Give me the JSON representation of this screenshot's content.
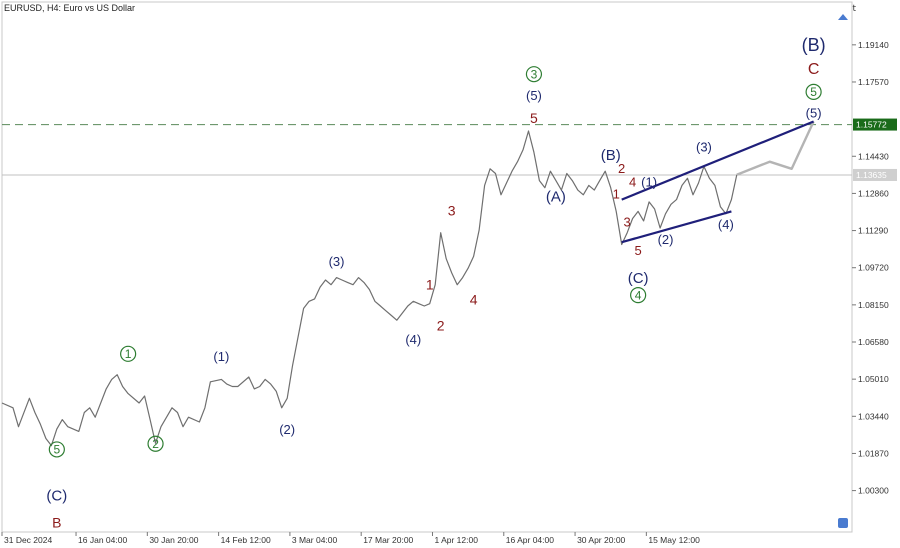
{
  "header": {
    "symbol_title": "EURUSD, H4:  Euro vs US Dollar",
    "corner_glyph": "t"
  },
  "colors": {
    "price_line": "#6f6f6f",
    "forecast_line": "#b4b4b4",
    "channel": "#1f1f7a",
    "navy_label": "#1f2a6e",
    "red_label": "#8b1a1a",
    "green_label": "#2e7d32",
    "dash_line": "#5a8a5a",
    "current_badge": "#1a6b1a",
    "axis_text": "#333333"
  },
  "chart_data": {
    "type": "line",
    "title": "EURUSD, H4:  Euro vs US Dollar",
    "xlabel": "",
    "ylabel": "",
    "ylim": [
      0.9855,
      1.2095
    ],
    "y_ticks": [
      1.1914,
      1.1757,
      1.1443,
      1.1286,
      1.1129,
      1.0972,
      1.0815,
      1.0658,
      1.0501,
      1.0344,
      1.0187,
      1.003
    ],
    "y_tick_labels": [
      "1.19140",
      "1.17570",
      "1.14430",
      "1.12860",
      "1.11290",
      "1.09720",
      "1.08150",
      "1.06580",
      "1.05010",
      "1.03440",
      "1.01870",
      "1.00300"
    ],
    "x_range": [
      0,
      155
    ],
    "x_ticks": [
      {
        "t": 0,
        "label": "31 Dec 2024"
      },
      {
        "t": 13.5,
        "label": "16 Jan 04:00"
      },
      {
        "t": 26.5,
        "label": "30 Jan 20:00"
      },
      {
        "t": 39.5,
        "label": "14 Feb 12:00"
      },
      {
        "t": 52.5,
        "label": "3 Mar 04:00"
      },
      {
        "t": 65.5,
        "label": "17 Mar 20:00"
      },
      {
        "t": 78.5,
        "label": "1 Apr 12:00"
      },
      {
        "t": 91.5,
        "label": "16 Apr 04:00"
      },
      {
        "t": 104.5,
        "label": "30 Apr 20:00"
      },
      {
        "t": 117.5,
        "label": "15 May 12:00"
      }
    ],
    "price_levels": [
      {
        "name": "resistance",
        "value": 1.1577,
        "label": "1.15772",
        "style": "dashed"
      },
      {
        "name": "current",
        "value": 1.1364,
        "label": "1.13635",
        "style": "solid"
      }
    ],
    "series": [
      {
        "name": "EURUSD",
        "points": [
          [
            0,
            1.04
          ],
          [
            2,
            1.038
          ],
          [
            3,
            1.03
          ],
          [
            5,
            1.042
          ],
          [
            6,
            1.036
          ],
          [
            7,
            1.031
          ],
          [
            8,
            1.025
          ],
          [
            9,
            1.022
          ],
          [
            10,
            1.029
          ],
          [
            11,
            1.033
          ],
          [
            12,
            1.03
          ],
          [
            14,
            1.028
          ],
          [
            15,
            1.036
          ],
          [
            16,
            1.038
          ],
          [
            17,
            1.034
          ],
          [
            19,
            1.046
          ],
          [
            20,
            1.05
          ],
          [
            21,
            1.052
          ],
          [
            22,
            1.047
          ],
          [
            23,
            1.044
          ],
          [
            25,
            1.04
          ],
          [
            26,
            1.043
          ],
          [
            27,
            1.033
          ],
          [
            28,
            1.023
          ],
          [
            29,
            1.03
          ],
          [
            31,
            1.038
          ],
          [
            32,
            1.036
          ],
          [
            33,
            1.03
          ],
          [
            34,
            1.034
          ],
          [
            36,
            1.032
          ],
          [
            37,
            1.038
          ],
          [
            38,
            1.049
          ],
          [
            40,
            1.05
          ],
          [
            41,
            1.048
          ],
          [
            42,
            1.047
          ],
          [
            43,
            1.047
          ],
          [
            45,
            1.051
          ],
          [
            46,
            1.046
          ],
          [
            47,
            1.047
          ],
          [
            48,
            1.05
          ],
          [
            49,
            1.048
          ],
          [
            50,
            1.045
          ],
          [
            51,
            1.038
          ],
          [
            52,
            1.042
          ],
          [
            53,
            1.056
          ],
          [
            54,
            1.068
          ],
          [
            55,
            1.08
          ],
          [
            56,
            1.083
          ],
          [
            57,
            1.084
          ],
          [
            58,
            1.089
          ],
          [
            59,
            1.092
          ],
          [
            60,
            1.09
          ],
          [
            61,
            1.093
          ],
          [
            62,
            1.092
          ],
          [
            63,
            1.091
          ],
          [
            64,
            1.09
          ],
          [
            65,
            1.093
          ],
          [
            66,
            1.091
          ],
          [
            67,
            1.088
          ],
          [
            68,
            1.083
          ],
          [
            69,
            1.081
          ],
          [
            70,
            1.079
          ],
          [
            71,
            1.077
          ],
          [
            72,
            1.075
          ],
          [
            73,
            1.078
          ],
          [
            74,
            1.081
          ],
          [
            75,
            1.083
          ],
          [
            76,
            1.082
          ],
          [
            77,
            1.081
          ],
          [
            78,
            1.082
          ],
          [
            79,
            1.09
          ],
          [
            80,
            1.112
          ],
          [
            81,
            1.101
          ],
          [
            82,
            1.095
          ],
          [
            83,
            1.09
          ],
          [
            84,
            1.093
          ],
          [
            85,
            1.097
          ],
          [
            86,
            1.102
          ],
          [
            87,
            1.113
          ],
          [
            88,
            1.132
          ],
          [
            89,
            1.139
          ],
          [
            90,
            1.137
          ],
          [
            91,
            1.128
          ],
          [
            92,
            1.133
          ],
          [
            93,
            1.138
          ],
          [
            94,
            1.142
          ],
          [
            95,
            1.147
          ],
          [
            96,
            1.155
          ],
          [
            97,
            1.146
          ],
          [
            98,
            1.134
          ],
          [
            99,
            1.131
          ],
          [
            100,
            1.138
          ],
          [
            101,
            1.134
          ],
          [
            102,
            1.13
          ],
          [
            103,
            1.137
          ],
          [
            104,
            1.134
          ],
          [
            105,
            1.13
          ],
          [
            106,
            1.128
          ],
          [
            107,
            1.132
          ],
          [
            108,
            1.13
          ],
          [
            109,
            1.134
          ],
          [
            110,
            1.138
          ],
          [
            111,
            1.131
          ],
          [
            112,
            1.121
          ],
          [
            113,
            1.107
          ],
          [
            114,
            1.112
          ],
          [
            115,
            1.118
          ],
          [
            116,
            1.121
          ],
          [
            117,
            1.117
          ],
          [
            118,
            1.125
          ],
          [
            119,
            1.122
          ],
          [
            120,
            1.114
          ],
          [
            121,
            1.12
          ],
          [
            122,
            1.124
          ],
          [
            123,
            1.126
          ],
          [
            124,
            1.132
          ],
          [
            125,
            1.135
          ],
          [
            126,
            1.128
          ],
          [
            127,
            1.133
          ],
          [
            128,
            1.14
          ],
          [
            129,
            1.135
          ],
          [
            130,
            1.132
          ],
          [
            131,
            1.123
          ],
          [
            132,
            1.12
          ],
          [
            133,
            1.126
          ],
          [
            134,
            1.1365
          ]
        ]
      },
      {
        "name": "forecast",
        "points": [
          [
            134,
            1.1365
          ],
          [
            140,
            1.142
          ],
          [
            144,
            1.139
          ],
          [
            148,
            1.159
          ]
        ]
      },
      {
        "name": "channel_upper",
        "points": [
          [
            113,
            1.126
          ],
          [
            148,
            1.159
          ]
        ]
      },
      {
        "name": "channel_lower",
        "points": [
          [
            113,
            1.108
          ],
          [
            133,
            1.121
          ]
        ]
      }
    ],
    "annotations": [
      {
        "text": "(B)",
        "t": 148,
        "y": 1.1915,
        "color": "navy",
        "size": 18,
        "circled": false
      },
      {
        "text": "C",
        "t": 148,
        "y": 1.1816,
        "color": "red",
        "size": 16,
        "circled": false
      },
      {
        "text": "5",
        "t": 148,
        "y": 1.1715,
        "color": "green",
        "size": 12,
        "circled": true
      },
      {
        "text": "(5)",
        "t": 148,
        "y": 1.1626,
        "color": "navy",
        "size": 13,
        "circled": false
      },
      {
        "text": "3",
        "t": 97,
        "y": 1.179,
        "color": "green",
        "size": 12,
        "circled": true
      },
      {
        "text": "(5)",
        "t": 97,
        "y": 1.17,
        "color": "navy",
        "size": 13,
        "circled": false
      },
      {
        "text": "5",
        "t": 97,
        "y": 1.1605,
        "color": "red",
        "size": 14,
        "circled": false
      },
      {
        "text": "(B)",
        "t": 111,
        "y": 1.145,
        "color": "navy",
        "size": 15,
        "circled": false
      },
      {
        "text": "2",
        "t": 113,
        "y": 1.1393,
        "color": "red",
        "size": 13,
        "circled": false
      },
      {
        "text": "4",
        "t": 115,
        "y": 1.1334,
        "color": "red",
        "size": 13,
        "circled": false
      },
      {
        "text": "(1)",
        "t": 118,
        "y": 1.1335,
        "color": "navy",
        "size": 13,
        "circled": false
      },
      {
        "text": "1",
        "t": 112,
        "y": 1.1284,
        "color": "red",
        "size": 13,
        "circled": false
      },
      {
        "text": "(A)",
        "t": 101,
        "y": 1.1275,
        "color": "navy",
        "size": 15,
        "circled": false
      },
      {
        "text": "3",
        "t": 114,
        "y": 1.1167,
        "color": "red",
        "size": 13,
        "circled": false
      },
      {
        "text": "5",
        "t": 116,
        "y": 1.1046,
        "color": "red",
        "size": 13,
        "circled": false
      },
      {
        "text": "(C)",
        "t": 116,
        "y": 1.093,
        "color": "navy",
        "size": 15,
        "circled": false
      },
      {
        "text": "4",
        "t": 116,
        "y": 1.0856,
        "color": "green",
        "size": 12,
        "circled": true
      },
      {
        "text": "(2)",
        "t": 121,
        "y": 1.1092,
        "color": "navy",
        "size": 13,
        "circled": false
      },
      {
        "text": "(3)",
        "t": 128,
        "y": 1.1482,
        "color": "navy",
        "size": 13,
        "circled": false
      },
      {
        "text": "(4)",
        "t": 132,
        "y": 1.1155,
        "color": "navy",
        "size": 13,
        "circled": false
      },
      {
        "text": "3",
        "t": 82,
        "y": 1.1215,
        "color": "red",
        "size": 14,
        "circled": false
      },
      {
        "text": "1",
        "t": 78,
        "y": 1.0901,
        "color": "red",
        "size": 14,
        "circled": false
      },
      {
        "text": "4",
        "t": 86,
        "y": 1.0838,
        "color": "red",
        "size": 14,
        "circled": false
      },
      {
        "text": "2",
        "t": 80,
        "y": 1.0727,
        "color": "red",
        "size": 14,
        "circled": false
      },
      {
        "text": "(3)",
        "t": 61,
        "y": 1.1,
        "color": "navy",
        "size": 13,
        "circled": false
      },
      {
        "text": "(4)",
        "t": 75,
        "y": 1.0669,
        "color": "navy",
        "size": 13,
        "circled": false
      },
      {
        "text": "1",
        "t": 23,
        "y": 1.0608,
        "color": "green",
        "size": 12,
        "circled": true
      },
      {
        "text": "(1)",
        "t": 40,
        "y": 1.0598,
        "color": "navy",
        "size": 13,
        "circled": false
      },
      {
        "text": "(2)",
        "t": 52,
        "y": 1.0289,
        "color": "navy",
        "size": 13,
        "circled": false
      },
      {
        "text": "2",
        "t": 28,
        "y": 1.0228,
        "color": "green",
        "size": 12,
        "circled": true
      },
      {
        "text": "5",
        "t": 10,
        "y": 1.0204,
        "color": "green",
        "size": 12,
        "circled": true
      },
      {
        "text": "(C)",
        "t": 10,
        "y": 1.0012,
        "color": "navy",
        "size": 15,
        "circled": false
      },
      {
        "text": "B",
        "t": 10,
        "y": 0.9895,
        "color": "red",
        "size": 14,
        "circled": false
      }
    ]
  }
}
